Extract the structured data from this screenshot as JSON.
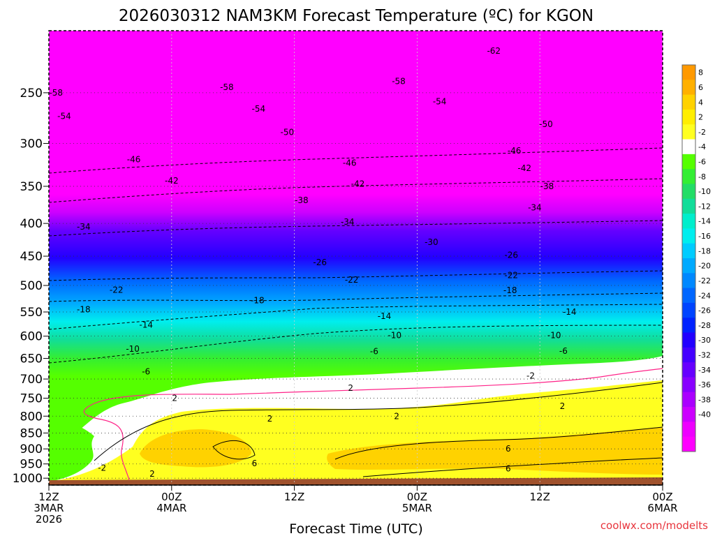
{
  "chart_data": {
    "type": "heatmap",
    "title": "2026030312 NAM3KM Forecast Temperature (ºC) for KGON",
    "xlabel": "Forecast Time (UTC)",
    "ylabel": "",
    "credit": "coolwx.com/modelts",
    "x_forecast_hours_range": [
      0,
      60
    ],
    "y_pressure_range_hpa": [
      1025,
      200
    ],
    "x_ticks": [
      {
        "line1": "12Z",
        "line2": "3MAR",
        "line3": "2026"
      },
      {
        "line1": "00Z",
        "line2": "4MAR",
        "line3": ""
      },
      {
        "line1": "12Z",
        "line2": "",
        "line3": ""
      },
      {
        "line1": "00Z",
        "line2": "5MAR",
        "line3": ""
      },
      {
        "line1": "12Z",
        "line2": "",
        "line3": ""
      },
      {
        "line1": "00Z",
        "line2": "6MAR",
        "line3": ""
      }
    ],
    "y_ticks": [
      "250",
      "300",
      "350",
      "400",
      "450",
      "500",
      "550",
      "600",
      "650",
      "700",
      "750",
      "800",
      "850",
      "900",
      "950",
      "1000"
    ],
    "colorbar": {
      "labels": [
        "8",
        "6",
        "4",
        "2",
        "-2",
        "-4",
        "-6",
        "-8",
        "-10",
        "-12",
        "-14",
        "-16",
        "-18",
        "-20",
        "-22",
        "-24",
        "-26",
        "-28",
        "-30",
        "-32",
        "-34",
        "-36",
        "-38",
        "-40"
      ],
      "colors": [
        "#ff9900",
        "#ffb000",
        "#ffd200",
        "#ffee00",
        "#ffff20",
        "#ffffff",
        "#55ff00",
        "#33ee33",
        "#22dd66",
        "#11dd99",
        "#00eecc",
        "#00eeee",
        "#00ccff",
        "#00aaff",
        "#0088ff",
        "#0066ff",
        "#0044ff",
        "#0022ff",
        "#2200ff",
        "#4400ff",
        "#6600ff",
        "#8800ff",
        "#aa00ff",
        "#cc00ff",
        "#ee00ff",
        "#ff00ff"
      ]
    },
    "contour_labels": [
      {
        "text": "-62",
        "hour": 43.5,
        "p": 215
      },
      {
        "text": "-58",
        "hour": 0.7,
        "p": 250
      },
      {
        "text": "-58",
        "hour": 17.4,
        "p": 245
      },
      {
        "text": "-58",
        "hour": 34.2,
        "p": 240
      },
      {
        "text": "-54",
        "hour": 1.5,
        "p": 272
      },
      {
        "text": "-54",
        "hour": 20.5,
        "p": 265
      },
      {
        "text": "-54",
        "hour": 38.2,
        "p": 258
      },
      {
        "text": "-50",
        "hour": 23.3,
        "p": 288
      },
      {
        "text": "-50",
        "hour": 48.6,
        "p": 280
      },
      {
        "text": "-46",
        "hour": 8.3,
        "p": 318
      },
      {
        "text": "-46",
        "hour": 29.4,
        "p": 322
      },
      {
        "text": "-46",
        "hour": 45.5,
        "p": 308
      },
      {
        "text": "-42",
        "hour": 12.0,
        "p": 343
      },
      {
        "text": "-42",
        "hour": 30.2,
        "p": 347
      },
      {
        "text": "-42",
        "hour": 46.5,
        "p": 328
      },
      {
        "text": "-38",
        "hour": 24.7,
        "p": 368
      },
      {
        "text": "-38",
        "hour": 48.7,
        "p": 350
      },
      {
        "text": "-34",
        "hour": 3.4,
        "p": 405
      },
      {
        "text": "-34",
        "hour": 29.2,
        "p": 398
      },
      {
        "text": "-34",
        "hour": 47.5,
        "p": 378
      },
      {
        "text": "-30",
        "hour": 37.4,
        "p": 428
      },
      {
        "text": "-26",
        "hour": 26.5,
        "p": 460
      },
      {
        "text": "-26",
        "hour": 45.2,
        "p": 448
      },
      {
        "text": "-22",
        "hour": 6.6,
        "p": 508
      },
      {
        "text": "-22",
        "hour": 29.6,
        "p": 490
      },
      {
        "text": "-22",
        "hour": 45.2,
        "p": 482
      },
      {
        "text": "-18",
        "hour": 3.4,
        "p": 545
      },
      {
        "text": "-18",
        "hour": 20.4,
        "p": 528
      },
      {
        "text": "-18",
        "hour": 45.1,
        "p": 509
      },
      {
        "text": "-14",
        "hour": 9.5,
        "p": 576
      },
      {
        "text": "-14",
        "hour": 32.8,
        "p": 558
      },
      {
        "text": "-14",
        "hour": 50.9,
        "p": 550
      },
      {
        "text": "-10",
        "hour": 8.2,
        "p": 628
      },
      {
        "text": "-10",
        "hour": 33.8,
        "p": 598
      },
      {
        "text": "-10",
        "hour": 49.4,
        "p": 598
      },
      {
        "text": "-6",
        "hour": 9.5,
        "p": 682
      },
      {
        "text": "-6",
        "hour": 31.8,
        "p": 634
      },
      {
        "text": "-6",
        "hour": 50.3,
        "p": 633
      },
      {
        "text": "-2",
        "hour": 47.1,
        "p": 692
      },
      {
        "text": "2",
        "hour": 12.3,
        "p": 750
      },
      {
        "text": "2",
        "hour": 29.5,
        "p": 723
      },
      {
        "text": "2",
        "hour": 21.6,
        "p": 808
      },
      {
        "text": "2",
        "hour": 34.0,
        "p": 800
      },
      {
        "text": "2",
        "hour": 50.2,
        "p": 772
      },
      {
        "text": "-2",
        "hour": 5.2,
        "p": 964
      },
      {
        "text": "2",
        "hour": 10.1,
        "p": 985
      },
      {
        "text": "6",
        "hour": 20.1,
        "p": 948
      },
      {
        "text": "6",
        "hour": 44.9,
        "p": 900
      },
      {
        "text": "6",
        "hour": 44.9,
        "p": 966
      }
    ]
  }
}
